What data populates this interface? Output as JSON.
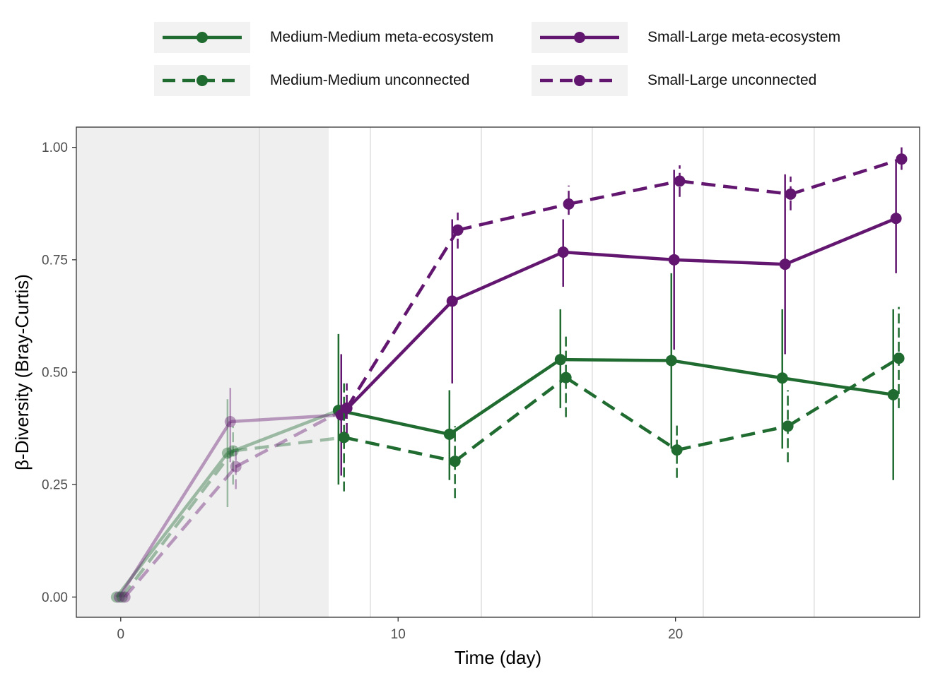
{
  "colors": {
    "green": "#1f6b30",
    "purple": "#62166f",
    "panel_border": "#333333",
    "grid": "#d9d9d9",
    "shade": "#efefef"
  },
  "chart_data": {
    "type": "line",
    "title": "",
    "xlabel": "Time (day)",
    "ylabel": "β-Diversity (Bray-Curtis)",
    "xlim": [
      -1.6,
      28.8
    ],
    "ylim": [
      -0.045,
      1.045
    ],
    "xticks": [
      0,
      10,
      20
    ],
    "xtick_labels": [
      "0",
      "10",
      "20"
    ],
    "yticks": [
      0,
      0.25,
      0.5,
      0.75,
      1.0
    ],
    "ytick_labels": [
      "0.00",
      "0.25",
      "0.50",
      "0.75",
      "1.00"
    ],
    "x_minor_grid": [
      5,
      9,
      13,
      17,
      21,
      25
    ],
    "shaded_period": [
      -1.6,
      7.5
    ],
    "grid": "vertical",
    "legend_position": "top",
    "series": [
      {
        "name": "Medium-Medium meta-ecosystem",
        "color": "green",
        "linestyle": "solid",
        "x": [
          0,
          4,
          8,
          12,
          16,
          20,
          24,
          28
        ],
        "y": [
          0.0,
          0.32,
          0.415,
          0.362,
          0.528,
          0.526,
          0.487,
          0.45
        ],
        "err_low": [
          0.0,
          0.2,
          0.25,
          0.26,
          0.42,
          0.33,
          0.33,
          0.26
        ],
        "err_high": [
          0.0,
          0.44,
          0.585,
          0.46,
          0.64,
          0.72,
          0.64,
          0.64
        ]
      },
      {
        "name": "Small-Large meta-ecosystem",
        "color": "purple",
        "linestyle": "solid",
        "x": [
          0,
          4,
          8,
          12,
          16,
          20,
          24,
          28
        ],
        "y": [
          0.0,
          0.39,
          0.405,
          0.658,
          0.767,
          0.75,
          0.74,
          0.842
        ],
        "err_low": [
          0.0,
          0.3,
          0.27,
          0.475,
          0.69,
          0.55,
          0.54,
          0.72
        ],
        "err_high": [
          0.0,
          0.465,
          0.54,
          0.84,
          0.84,
          0.95,
          0.94,
          0.97
        ]
      },
      {
        "name": "Medium-Medium unconnected",
        "color": "green",
        "linestyle": "dashed",
        "x": [
          0,
          4,
          8,
          12,
          16,
          20,
          24,
          28
        ],
        "y": [
          0.0,
          0.325,
          0.355,
          0.302,
          0.488,
          0.327,
          0.38,
          0.531
        ],
        "err_low": [
          0.0,
          0.25,
          0.235,
          0.22,
          0.4,
          0.265,
          0.3,
          0.42
        ],
        "err_high": [
          0.0,
          0.38,
          0.475,
          0.38,
          0.58,
          0.385,
          0.46,
          0.645
        ]
      },
      {
        "name": "Small-Large unconnected",
        "color": "purple",
        "linestyle": "dashed",
        "x": [
          0,
          4,
          8,
          12,
          16,
          20,
          24,
          28
        ],
        "y": [
          0.0,
          0.29,
          0.42,
          0.816,
          0.874,
          0.925,
          0.896,
          0.974
        ],
        "err_low": [
          0.0,
          0.24,
          0.365,
          0.775,
          0.85,
          0.89,
          0.86,
          0.95
        ],
        "err_high": [
          0.0,
          0.335,
          0.475,
          0.855,
          0.915,
          0.96,
          0.935,
          1.0
        ]
      }
    ]
  }
}
